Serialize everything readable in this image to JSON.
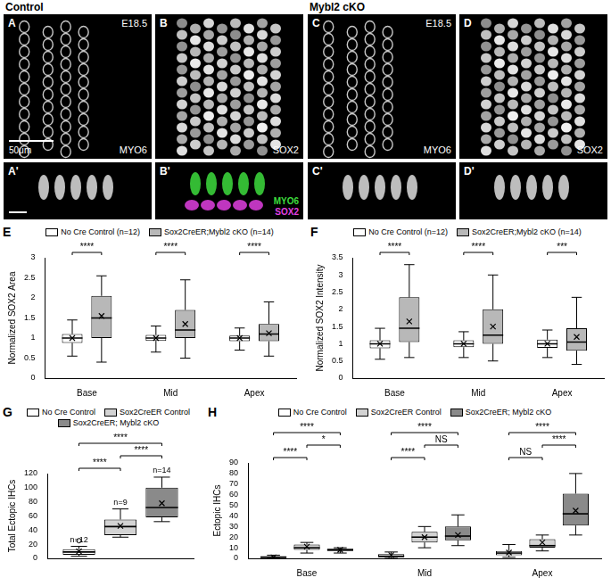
{
  "figure": {
    "group_titles": [
      {
        "panel": "A",
        "text": "Control"
      },
      {
        "panel": "C",
        "text": "Mybl2 cKO"
      }
    ],
    "image_panels": [
      {
        "letter": "A",
        "label": "MYO6",
        "stage": "E18.5",
        "scale_bar": "50μm"
      },
      {
        "letter": "B",
        "label": "SOX2"
      },
      {
        "letter": "C",
        "label": "MYO6",
        "stage": "E18.5"
      },
      {
        "letter": "D",
        "label": "SOX2"
      }
    ],
    "section_panels": [
      {
        "letter": "A'"
      },
      {
        "letter": "B'",
        "channels": [
          {
            "name": "MYO6",
            "color": "#3ddc3d"
          },
          {
            "name": "SOX2",
            "color": "#e040e0"
          }
        ]
      },
      {
        "letter": "C'"
      },
      {
        "letter": "D'"
      }
    ]
  },
  "chart_data": [
    {
      "panel": "E",
      "type": "boxplot",
      "y_label": "Normalized SOX2 Area",
      "categories": [
        "Base",
        "Mid",
        "Apex"
      ],
      "ylim": [
        0,
        3
      ],
      "yticks": [
        0,
        0.5,
        1,
        1.5,
        2,
        2.5,
        3
      ],
      "grid": false,
      "legend": "top",
      "series": [
        {
          "name": "No Cre Control (n=12)",
          "color": "#ffffff",
          "values": [
            {
              "min": 0.55,
              "q1": 0.88,
              "median": 1.0,
              "q3": 1.1,
              "max": 1.45,
              "mean": 1.0
            },
            {
              "min": 0.65,
              "q1": 0.93,
              "median": 1.0,
              "q3": 1.08,
              "max": 1.3,
              "mean": 1.0
            },
            {
              "min": 0.7,
              "q1": 0.92,
              "median": 1.0,
              "q3": 1.06,
              "max": 1.25,
              "mean": 1.0
            }
          ]
        },
        {
          "name": "Sox2CreER;Mybl2 cKO (n=14)",
          "color": "#b8b8b8",
          "values": [
            {
              "min": 0.4,
              "q1": 1.0,
              "median": 1.5,
              "q3": 2.05,
              "max": 2.55,
              "mean": 1.55
            },
            {
              "min": 0.5,
              "q1": 1.0,
              "median": 1.2,
              "q3": 1.7,
              "max": 2.45,
              "mean": 1.35
            },
            {
              "min": 0.55,
              "q1": 0.92,
              "median": 1.1,
              "q3": 1.35,
              "max": 1.9,
              "mean": 1.12
            }
          ]
        }
      ],
      "significance": [
        {
          "category": "Base",
          "pair": [
            "No Cre Control (n=12)",
            "Sox2CreER;Mybl2 cKO (n=14)"
          ],
          "label": "****"
        },
        {
          "category": "Mid",
          "pair": [
            "No Cre Control (n=12)",
            "Sox2CreER;Mybl2 cKO (n=14)"
          ],
          "label": "****"
        },
        {
          "category": "Apex",
          "pair": [
            "No Cre Control (n=12)",
            "Sox2CreER;Mybl2 cKO (n=14)"
          ],
          "label": "****"
        }
      ]
    },
    {
      "panel": "F",
      "type": "boxplot",
      "y_label": "Normalized SOX2 Intensity",
      "categories": [
        "Base",
        "Mid",
        "Apex"
      ],
      "ylim": [
        0,
        3.5
      ],
      "yticks": [
        0,
        0.5,
        1,
        1.5,
        2,
        2.5,
        3,
        3.5
      ],
      "grid": false,
      "legend": "top",
      "series": [
        {
          "name": "No Cre Control (n=12)",
          "color": "#ffffff",
          "values": [
            {
              "min": 0.55,
              "q1": 0.87,
              "median": 1.0,
              "q3": 1.1,
              "max": 1.45,
              "mean": 1.0
            },
            {
              "min": 0.6,
              "q1": 0.9,
              "median": 1.0,
              "q3": 1.1,
              "max": 1.35,
              "mean": 1.0
            },
            {
              "min": 0.6,
              "q1": 0.88,
              "median": 1.0,
              "q3": 1.12,
              "max": 1.4,
              "mean": 1.0
            }
          ]
        },
        {
          "name": "Sox2CreER;Mybl2 cKO (n=14)",
          "color": "#b8b8b8",
          "values": [
            {
              "min": 0.6,
              "q1": 1.05,
              "median": 1.45,
              "q3": 2.35,
              "max": 3.3,
              "mean": 1.65
            },
            {
              "min": 0.5,
              "q1": 1.0,
              "median": 1.25,
              "q3": 2.0,
              "max": 3.0,
              "mean": 1.5
            },
            {
              "min": 0.4,
              "q1": 0.8,
              "median": 1.05,
              "q3": 1.45,
              "max": 2.35,
              "mean": 1.2
            }
          ]
        }
      ],
      "significance": [
        {
          "category": "Base",
          "pair": [
            "No Cre Control (n=12)",
            "Sox2CreER;Mybl2 cKO (n=14)"
          ],
          "label": "****"
        },
        {
          "category": "Mid",
          "pair": [
            "No Cre Control (n=12)",
            "Sox2CreER;Mybl2 cKO (n=14)"
          ],
          "label": "****"
        },
        {
          "category": "Apex",
          "pair": [
            "No Cre Control (n=12)",
            "Sox2CreER;Mybl2 cKO (n=14)"
          ],
          "label": "***"
        }
      ]
    },
    {
      "panel": "G",
      "type": "boxplot",
      "y_label": "Total Ectopic IHCs",
      "categories": [
        null
      ],
      "ylim": [
        0,
        120
      ],
      "yticks": [
        0,
        20,
        40,
        60,
        80,
        100,
        120
      ],
      "grid": false,
      "legend": "top",
      "series": [
        {
          "name": "No Cre Control",
          "color": "#ffffff",
          "values": [
            {
              "min": 3,
              "q1": 5,
              "median": 9,
              "q3": 13,
              "max": 17,
              "mean": 10,
              "outliers": [
                25
              ]
            }
          ]
        },
        {
          "name": "Sox2CreER Control",
          "color": "#d3d3d3",
          "values": [
            {
              "min": 30,
              "q1": 33,
              "median": 45,
              "q3": 55,
              "max": 70,
              "mean": 46
            }
          ]
        },
        {
          "name": "Sox2CreER; Mybl2 cKO",
          "color": "#8a8a8a",
          "values": [
            {
              "min": 52,
              "q1": 58,
              "median": 72,
              "q3": 100,
              "max": 115,
              "mean": 78
            }
          ]
        }
      ],
      "annotations": [
        {
          "series": "No Cre Control",
          "label": "n=12"
        },
        {
          "series": "Sox2CreER Control",
          "label": "n=9"
        },
        {
          "series": "Sox2CreER; Mybl2 cKO",
          "label": "n=14"
        }
      ],
      "significance": [
        {
          "pair": [
            "No Cre Control",
            "Sox2CreER Control"
          ],
          "label": "****"
        },
        {
          "pair": [
            "Sox2CreER Control",
            "Sox2CreER; Mybl2 cKO"
          ],
          "label": "****"
        },
        {
          "pair": [
            "No Cre Control",
            "Sox2CreER; Mybl2 cKO"
          ],
          "label": "****"
        }
      ]
    },
    {
      "panel": "H",
      "type": "boxplot",
      "y_label": "Ectopic IHCs",
      "categories": [
        "Base",
        "Mid",
        "Apex"
      ],
      "ylim": [
        0,
        90
      ],
      "yticks": [
        0,
        10,
        20,
        30,
        40,
        50,
        60,
        70,
        80,
        90
      ],
      "grid": false,
      "legend": "top",
      "series": [
        {
          "name": "No Cre Control",
          "color": "#ffffff",
          "values": [
            {
              "min": 0,
              "q1": 0.5,
              "median": 1,
              "q3": 2,
              "max": 3,
              "mean": 1
            },
            {
              "min": 0,
              "q1": 1,
              "median": 2,
              "q3": 4,
              "max": 6,
              "mean": 3
            },
            {
              "min": 1,
              "q1": 3,
              "median": 5,
              "q3": 7,
              "max": 13,
              "mean": 5.5
            }
          ]
        },
        {
          "name": "Sox2CreER Control",
          "color": "#d3d3d3",
          "values": [
            {
              "min": 5,
              "q1": 8,
              "median": 10,
              "q3": 13,
              "max": 15,
              "mean": 11
            },
            {
              "min": 10,
              "q1": 15,
              "median": 20,
              "q3": 25,
              "max": 30,
              "mean": 20
            },
            {
              "min": 7,
              "q1": 10,
              "median": 12,
              "q3": 18,
              "max": 22,
              "mean": 15
            }
          ]
        },
        {
          "name": "Sox2CreER; Mybl2 cKO",
          "color": "#8a8a8a",
          "values": [
            {
              "min": 5,
              "q1": 7,
              "median": 8,
              "q3": 9,
              "max": 10,
              "mean": 8
            },
            {
              "min": 12,
              "q1": 17,
              "median": 21,
              "q3": 30,
              "max": 41,
              "mean": 22
            },
            {
              "min": 22,
              "q1": 31,
              "median": 42,
              "q3": 61,
              "max": 80,
              "mean": 45
            }
          ]
        }
      ],
      "significance": [
        {
          "category": "Base",
          "pair": [
            "No Cre Control",
            "Sox2CreER Control"
          ],
          "label": "****"
        },
        {
          "category": "Base",
          "pair": [
            "No Cre Control",
            "Sox2CreER; Mybl2 cKO"
          ],
          "label": "****"
        },
        {
          "category": "Base",
          "pair": [
            "Sox2CreER Control",
            "Sox2CreER; Mybl2 cKO"
          ],
          "label": "*"
        },
        {
          "category": "Mid",
          "pair": [
            "No Cre Control",
            "Sox2CreER Control"
          ],
          "label": "****"
        },
        {
          "category": "Mid",
          "pair": [
            "No Cre Control",
            "Sox2CreER; Mybl2 cKO"
          ],
          "label": "****"
        },
        {
          "category": "Mid",
          "pair": [
            "Sox2CreER Control",
            "Sox2CreER; Mybl2 cKO"
          ],
          "label": "NS"
        },
        {
          "category": "Apex",
          "pair": [
            "No Cre Control",
            "Sox2CreER Control"
          ],
          "label": "NS"
        },
        {
          "category": "Apex",
          "pair": [
            "No Cre Control",
            "Sox2CreER; Mybl2 cKO"
          ],
          "label": "****"
        },
        {
          "category": "Apex",
          "pair": [
            "Sox2CreER Control",
            "Sox2CreER; Mybl2 cKO"
          ],
          "label": "****"
        }
      ]
    }
  ]
}
